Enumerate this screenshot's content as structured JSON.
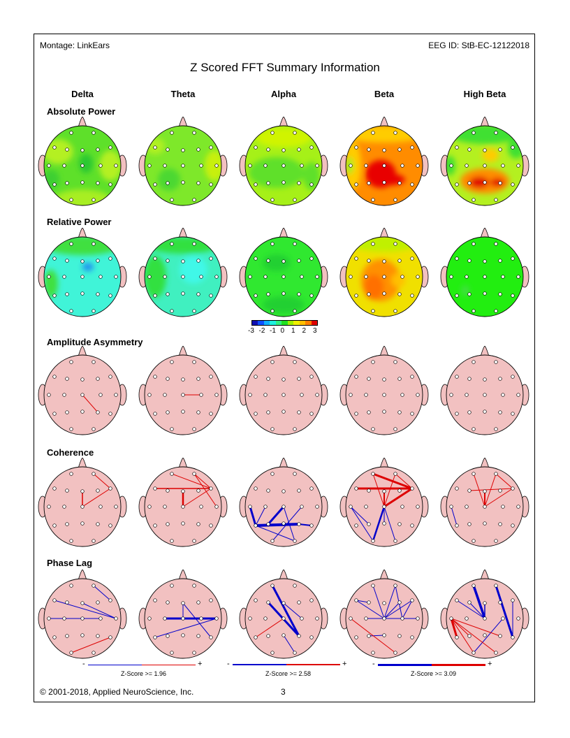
{
  "header": {
    "montage": "Montage:  LinkEars",
    "eeg_id": "EEG ID:  StB-EC-12122018",
    "title": "Z Scored FFT Summary Information"
  },
  "bands": [
    "Delta",
    "Theta",
    "Alpha",
    "Beta",
    "High Beta"
  ],
  "rows": [
    "Absolute Power",
    "Relative Power",
    "Amplitude Asymmetry",
    "Coherence",
    "Phase Lag"
  ],
  "colorbar": {
    "ticks": [
      "-3",
      "-2",
      "-1",
      "0",
      "1",
      "2",
      "3"
    ],
    "colors": [
      "#1010b0",
      "#1050ff",
      "#10b0ff",
      "#20f0e0",
      "#30f080",
      "#20e020",
      "#a0f000",
      "#f0f000",
      "#ffc000",
      "#ff8000",
      "#e00000"
    ]
  },
  "colors": {
    "positive": "#dd0000",
    "negative": "#0000cc",
    "head": "#f2c1c1",
    "outline": "#000000"
  },
  "electrodes": [
    "Fp1",
    "Fp2",
    "F7",
    "F3",
    "Fz",
    "F4",
    "F8",
    "T3",
    "C3",
    "Cz",
    "C4",
    "T4",
    "T5",
    "P3",
    "Pz",
    "P4",
    "T6",
    "O1",
    "O2"
  ],
  "maps": {
    "absolute": [
      "#5ee02a",
      "#7ee82a",
      "#a6f018",
      "#ff8c00",
      "#b4f020"
    ],
    "relative": [
      "#40f4d8",
      "#40f0c0",
      "#30e830",
      "#f0e000",
      "#22ee10"
    ]
  },
  "asymmetry": [
    [
      [
        "Cz",
        "P4",
        "+",
        1
      ]
    ],
    [
      [
        "Cz",
        "C4",
        "+",
        1
      ]
    ],
    [],
    [],
    []
  ],
  "coherence": [
    [
      [
        "Fp2",
        "F8",
        "+",
        1
      ],
      [
        "F8",
        "Cz",
        "+",
        1
      ],
      [
        "Fz",
        "Cz",
        "+",
        1.5
      ]
    ],
    [
      [
        "Fp1",
        "F8",
        "+",
        1
      ],
      [
        "Fp2",
        "F8",
        "+",
        1
      ],
      [
        "Fp2",
        "T4",
        "+",
        1
      ],
      [
        "F7",
        "F8",
        "+",
        1.5
      ],
      [
        "Cz",
        "F8",
        "+",
        1
      ],
      [
        "Fz",
        "Cz",
        "+",
        2.5
      ]
    ],
    [
      [
        "T3",
        "T5",
        "-",
        3
      ],
      [
        "C3",
        "T5",
        "-",
        1
      ],
      [
        "T5",
        "P4",
        "-",
        4
      ],
      [
        "P4",
        "T6",
        "-",
        2
      ],
      [
        "P3",
        "Cz",
        "-",
        3
      ],
      [
        "Cz",
        "O2",
        "-",
        1
      ],
      [
        "T5",
        "O2",
        "-",
        1
      ],
      [
        "O1",
        "C4",
        "-",
        1
      ]
    ],
    [
      [
        "Fp1",
        "F8",
        "+",
        3
      ],
      [
        "F7",
        "F8",
        "+",
        3
      ],
      [
        "Fp1",
        "Cz",
        "+",
        1
      ],
      [
        "Fp2",
        "Cz",
        "+",
        1
      ],
      [
        "Fp2",
        "F8",
        "+",
        1
      ],
      [
        "Fz",
        "Cz",
        "+",
        2
      ],
      [
        "F8",
        "Cz",
        "+",
        3
      ],
      [
        "T3",
        "P3",
        "-",
        1
      ],
      [
        "T3",
        "O1",
        "-",
        1
      ],
      [
        "Cz",
        "O1",
        "-",
        2.5
      ],
      [
        "Cz",
        "Pz",
        "-",
        1
      ],
      [
        "Cz",
        "O2",
        "-",
        1
      ]
    ],
    [
      [
        "Fp1",
        "Cz",
        "+",
        1
      ],
      [
        "Fp2",
        "Cz",
        "+",
        1
      ],
      [
        "Fp2",
        "F8",
        "+",
        1
      ],
      [
        "F3",
        "F8",
        "+",
        1
      ],
      [
        "Fz",
        "Cz",
        "+",
        2
      ],
      [
        "Cz",
        "F8",
        "+",
        1
      ],
      [
        "T3",
        "T5",
        "-",
        1
      ]
    ]
  ],
  "phase_lag": [
    [
      [
        "Fp2",
        "F8",
        "-",
        1
      ],
      [
        "F7",
        "T4",
        "-",
        1
      ],
      [
        "Fz",
        "T4",
        "-",
        1
      ],
      [
        "T3",
        "C4",
        "-",
        1
      ],
      [
        "O1",
        "T6",
        "+",
        1
      ]
    ],
    [
      [
        "C3",
        "T4",
        "-",
        3
      ],
      [
        "Fz",
        "Cz",
        "-",
        1
      ],
      [
        "Fz",
        "T6",
        "-",
        1
      ],
      [
        "T5",
        "T4",
        "-",
        1
      ]
    ],
    [
      [
        "Fp1",
        "P4",
        "-",
        3
      ],
      [
        "F3",
        "P4",
        "-",
        3
      ],
      [
        "Fz",
        "C4",
        "-",
        1
      ],
      [
        "Pz",
        "O2",
        "-",
        1
      ],
      [
        "T5",
        "Cz",
        "+",
        1
      ]
    ],
    [
      [
        "F7",
        "F3",
        "-",
        1
      ],
      [
        "F7",
        "Cz",
        "-",
        1
      ],
      [
        "Fp1",
        "Cz",
        "-",
        1
      ],
      [
        "Fp2",
        "Cz",
        "-",
        1
      ],
      [
        "Fp2",
        "C4",
        "-",
        1
      ],
      [
        "F4",
        "Cz",
        "-",
        1
      ],
      [
        "F8",
        "Cz",
        "-",
        1
      ],
      [
        "F8",
        "C4",
        "-",
        1
      ],
      [
        "C3",
        "Cz",
        "-",
        1
      ],
      [
        "Cz",
        "T4",
        "-",
        1
      ],
      [
        "P3",
        "Pz",
        "-",
        1
      ],
      [
        "T3",
        "O2",
        "+",
        1
      ]
    ],
    [
      [
        "Fp1",
        "Cz",
        "-",
        3.5
      ],
      [
        "F3",
        "Cz",
        "-",
        1
      ],
      [
        "F7",
        "Cz",
        "-",
        1
      ],
      [
        "Fz",
        "Cz",
        "-",
        1.5
      ],
      [
        "Fp2",
        "T6",
        "-",
        3
      ],
      [
        "F8",
        "T6",
        "-",
        1
      ],
      [
        "O1",
        "C4",
        "-",
        1
      ],
      [
        "T3",
        "T5",
        "+",
        3
      ],
      [
        "T3",
        "P3",
        "+",
        1
      ],
      [
        "T3",
        "O1",
        "+",
        1
      ],
      [
        "T3",
        "O2",
        "+",
        1
      ],
      [
        "T3",
        "P4",
        "+",
        1
      ]
    ]
  ],
  "legends": [
    {
      "label": "Z-Score >= 1.96",
      "minus": "-",
      "plus": "+"
    },
    {
      "label": "Z-Score >= 2.58",
      "minus": "-",
      "plus": "+"
    },
    {
      "label": "Z-Score >= 3.09",
      "minus": "-",
      "plus": "+"
    }
  ],
  "footer": {
    "copyright": "© 2001-2018, Applied NeuroScience, Inc.",
    "page": "3"
  }
}
